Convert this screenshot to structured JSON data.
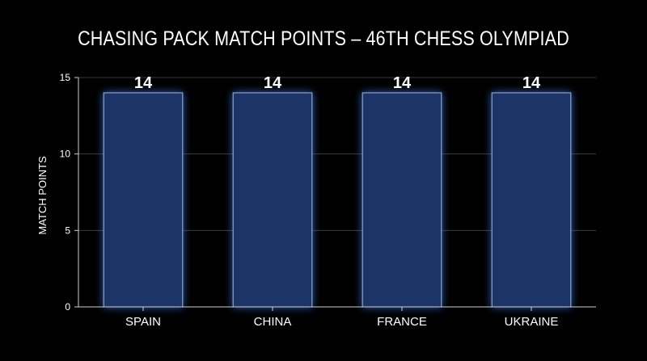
{
  "chart_data": {
    "type": "bar",
    "title": "CHASING PACK MATCH POINTS – 46TH CHESS OLYMPIAD",
    "xlabel": "",
    "ylabel": "MATCH POINTS",
    "categories": [
      "SPAIN",
      "CHINA",
      "FRANCE",
      "UKRAINE"
    ],
    "values": [
      14,
      14,
      14,
      14
    ],
    "ylim": [
      0,
      15
    ],
    "yticks": [
      0,
      5,
      10,
      15
    ],
    "grid": true,
    "data_labels": true,
    "bar_color": "#1e3566",
    "bar_edge_color": "#9fb4e6",
    "glow_color": "#3a6fd8"
  }
}
